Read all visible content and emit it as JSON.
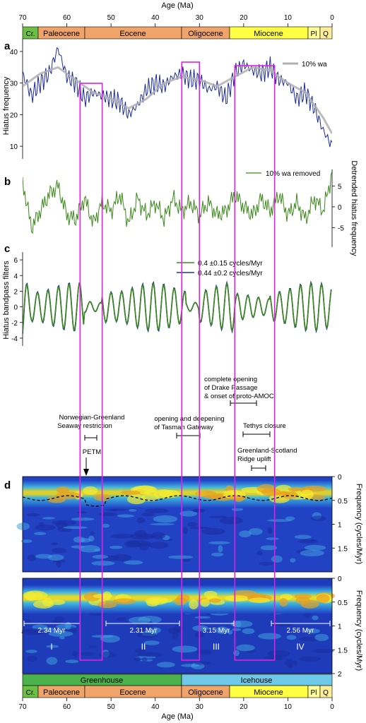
{
  "colors": {
    "magenta": "#e020e0",
    "hiatus_blue": "#1a2a9c",
    "wa_gray": "#b0b0b0",
    "green": "#3a8a1a",
    "filter_blue": "#2030a0",
    "cretaceous": "#6cbf45",
    "paleogene": "#f0a46a",
    "neogene": "#ffff44",
    "pliocene": "#ffff99",
    "quaternary": "#ffee99",
    "greenhouse": "#4cb24c",
    "icehouse": "#6ec8e8"
  },
  "axis": {
    "age_label": "Age (Ma)",
    "age_ticks": [
      "70",
      "60",
      "50",
      "40",
      "30",
      "20",
      "10",
      "0"
    ]
  },
  "epochs": [
    "Cr.",
    "Paleocene",
    "Eocene",
    "Oligocene",
    "Miocene",
    "Pl",
    "Q"
  ],
  "climate": [
    "Greenhouse",
    "Icehouse"
  ],
  "panel_letters": [
    "a",
    "b",
    "c",
    "d"
  ],
  "chart_data": [
    {
      "panel": "a",
      "type": "line",
      "xlabel": "Age (Ma)",
      "ylabel": "Hiatus frequency",
      "xlim": [
        70,
        0
      ],
      "ylim": [
        6,
        44
      ],
      "yticks": [
        "10",
        "20",
        "30",
        "40"
      ],
      "legend": "10% wa",
      "series": [
        {
          "name": "",
          "x": [
            70,
            68,
            66,
            64,
            62,
            60,
            58,
            56,
            54,
            52,
            50,
            48,
            46,
            44,
            42,
            40,
            38,
            36,
            34,
            32,
            30,
            28,
            26,
            24,
            22,
            20,
            18,
            16,
            14,
            12,
            10,
            8,
            6,
            4,
            2,
            0
          ],
          "values": [
            33,
            26,
            30,
            33,
            41,
            32,
            30,
            25,
            27,
            26,
            25,
            24,
            20,
            23,
            28,
            30,
            29,
            32,
            33,
            31,
            31,
            28,
            29,
            25,
            33,
            36,
            34,
            33,
            35,
            31,
            30,
            25,
            27,
            22,
            15,
            10
          ]
        },
        {
          "name": "10% wa",
          "x": [
            70,
            66,
            62,
            58,
            54,
            50,
            46,
            42,
            38,
            34,
            30,
            26,
            22,
            18,
            14,
            10,
            6,
            2,
            0
          ],
          "values": [
            29,
            33,
            35,
            31,
            27,
            25,
            22,
            25,
            30,
            32,
            31,
            29,
            32,
            35,
            34,
            30,
            27,
            19,
            14
          ]
        }
      ]
    },
    {
      "panel": "b",
      "type": "line",
      "xlabel": "Age (Ma)",
      "ylabel": "Detrended hiatus frequency",
      "xlim": [
        70,
        0
      ],
      "ylim": [
        -8,
        9
      ],
      "yticks": [
        "5",
        "0",
        "-5"
      ],
      "legend": "10% wa removed",
      "series": [
        {
          "name": "10% wa removed",
          "x": [
            70,
            68,
            66,
            64,
            62,
            60,
            58,
            56,
            54,
            52,
            50,
            48,
            46,
            44,
            42,
            40,
            38,
            36,
            34,
            32,
            30,
            28,
            26,
            24,
            22,
            20,
            18,
            16,
            14,
            12,
            10,
            8,
            6,
            4,
            2,
            0
          ],
          "values": [
            6,
            -5,
            -1,
            3,
            5,
            -2,
            -3,
            2,
            -4,
            1,
            -1,
            3,
            -4,
            2,
            -2,
            1,
            -3,
            2,
            -1,
            1,
            -2,
            1,
            -2,
            -1,
            3,
            0,
            -2,
            2,
            -1,
            3,
            -2,
            1,
            -3,
            2,
            -1,
            8
          ]
        }
      ]
    },
    {
      "panel": "c",
      "type": "line",
      "xlabel": "Age (Ma)",
      "ylabel": "Hiatus bandpass filters",
      "xlim": [
        70,
        0
      ],
      "ylim": [
        -5,
        7
      ],
      "yticks": [
        "6",
        "4",
        "2",
        "0",
        "-2",
        "-4"
      ],
      "series": [
        {
          "name": "0.4 ±0.15 cycles/Myr",
          "frequency": 0.4,
          "bandwidth": 0.15,
          "amplitude_range": [
            -3.5,
            4.5
          ]
        },
        {
          "name": "0.44 ±0.2 cycles/Myr",
          "frequency": 0.44,
          "bandwidth": 0.2,
          "amplitude_range": [
            -3.8,
            5
          ]
        }
      ]
    },
    {
      "panel": "d",
      "type": "heatmap",
      "xlabel": "Age (Ma)",
      "ylabel": "Frequency (cycles/Myr)",
      "xlim": [
        70,
        0
      ],
      "upper": {
        "ylim": [
          0,
          2
        ],
        "yticks": [
          "0",
          "0.5",
          "1",
          "1.5"
        ]
      },
      "lower": {
        "ylim": [
          0,
          2
        ],
        "yticks": [
          "0",
          "0.5",
          "1",
          "1.5",
          "2"
        ]
      },
      "ridge_frequency": 0.45,
      "intervals": [
        {
          "label": "I",
          "duration": "2.34 Myr",
          "from": 70,
          "to": 57
        },
        {
          "label": "II",
          "duration": "2.31 Myr",
          "from": 51,
          "to": 34
        },
        {
          "label": "III",
          "duration": "3.15 Myr",
          "from": 31,
          "to": 22
        },
        {
          "label": "IV",
          "duration": "2.56 Myr",
          "from": 14,
          "to": 0
        }
      ]
    }
  ],
  "highlight_windows_ma": [
    [
      57,
      52
    ],
    [
      34,
      30
    ],
    [
      22,
      13
    ]
  ],
  "events": [
    {
      "label": "Norwegian-Greenland\nSeaway restriction",
      "range_ma": [
        56,
        53
      ]
    },
    {
      "label": "PETM",
      "age_ma": 56
    },
    {
      "label": "opening and deepening\nof Tasman Gateway",
      "range_ma": [
        35,
        30
      ]
    },
    {
      "label": "complete opening\nof Drake Passage\n& onset of proto-AMOC",
      "range_ma": [
        23,
        17
      ]
    },
    {
      "label": "Tethys closure",
      "range_ma": [
        20,
        14
      ]
    },
    {
      "label": "Greenland-Scotland\nRidge uplift",
      "range_ma": [
        18,
        15
      ]
    }
  ]
}
